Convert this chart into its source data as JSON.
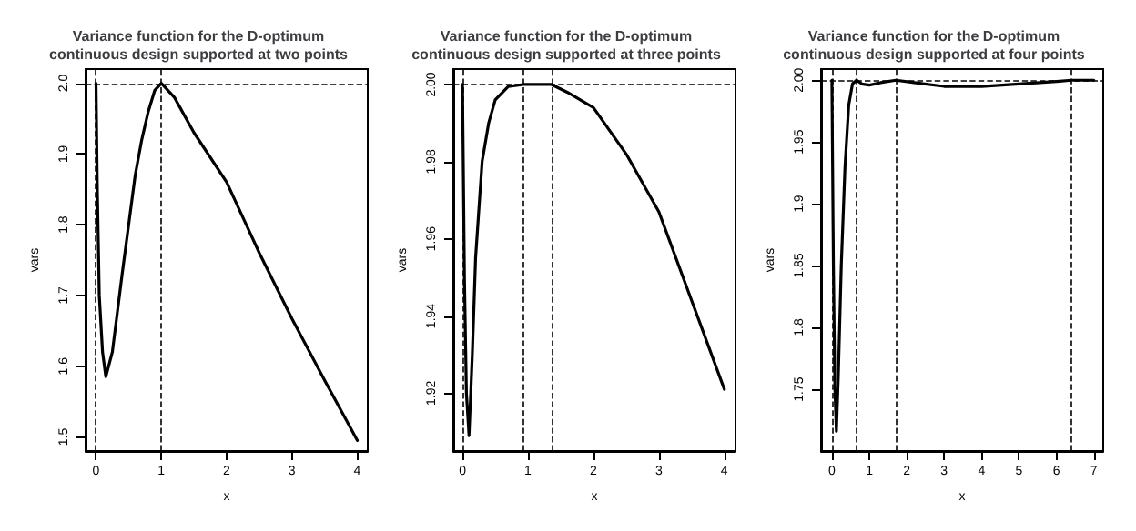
{
  "chart_data": [
    {
      "type": "line",
      "title": "Variance function for the D-optimum\ncontinuous design supported at two points",
      "xlabel": "x",
      "ylabel": "vars",
      "color": "#000000",
      "x": [
        0,
        0.02,
        0.05,
        0.1,
        0.15,
        0.25,
        0.4,
        0.5,
        0.6,
        0.7,
        0.8,
        0.9,
        1,
        1.2,
        1.5,
        2,
        2.5,
        3,
        3.5,
        4
      ],
      "values": [
        2.0,
        1.85,
        1.7,
        1.62,
        1.585,
        1.62,
        1.73,
        1.8,
        1.87,
        1.92,
        1.96,
        1.99,
        2.0,
        1.98,
        1.93,
        1.86,
        1.76,
        1.667,
        1.58,
        1.495
      ],
      "xlim": [
        -0.16,
        4.16
      ],
      "ylim": [
        1.48,
        2.02
      ],
      "xticks": [
        0,
        1,
        2,
        3,
        4
      ],
      "yticks": [
        1.5,
        1.6,
        1.7,
        1.8,
        1.9,
        {
          "value": 2,
          "label": "2.0"
        }
      ],
      "ref_lines": [
        {
          "axis": "x",
          "value": 0,
          "line_style": "dashed"
        },
        {
          "axis": "x",
          "value": 1,
          "line_style": "dashed"
        },
        {
          "axis": "y",
          "value": 2,
          "line_style": "dashed"
        }
      ],
      "grid": false,
      "marker": "none",
      "line_style": "solid"
    },
    {
      "type": "line",
      "title": "Variance function for the D-optimum\ncontinuous design supported at three points",
      "xlabel": "x",
      "ylabel": "vars",
      "color": "#000000",
      "x": [
        0,
        0.03,
        0.06,
        0.1,
        0.15,
        0.2,
        0.3,
        0.4,
        0.5,
        0.7,
        0.93,
        1.2,
        1.36,
        1.6,
        2,
        2.5,
        3,
        3.5,
        4
      ],
      "values": [
        2.0,
        1.95,
        1.92,
        1.909,
        1.93,
        1.955,
        1.98,
        1.99,
        1.996,
        1.9995,
        2.0,
        2.0,
        2.0,
        1.998,
        1.994,
        1.982,
        1.967,
        1.944,
        1.921
      ],
      "xlim": [
        -0.14,
        4.17
      ],
      "ylim": [
        1.905,
        2.004
      ],
      "xticks": [
        0,
        1,
        2,
        3,
        4
      ],
      "yticks": [
        {
          "value": 1.92,
          "label": "1.92"
        },
        {
          "value": 1.94,
          "label": "1.94"
        },
        {
          "value": 1.96,
          "label": "1.96"
        },
        {
          "value": 1.98,
          "label": "1.98"
        },
        {
          "value": 2,
          "label": "2.00"
        }
      ],
      "ref_lines": [
        {
          "axis": "x",
          "value": 0,
          "line_style": "dashed"
        },
        {
          "axis": "x",
          "value": 0.92,
          "line_style": "dashed"
        },
        {
          "axis": "x",
          "value": 1.36,
          "line_style": "dashed"
        },
        {
          "axis": "y",
          "value": 2,
          "line_style": "dashed"
        }
      ],
      "grid": false,
      "marker": "none",
      "line_style": "solid"
    },
    {
      "type": "line",
      "title": "Variance function for the D-optimum\ncontinuous design supported at four points",
      "xlabel": "x",
      "ylabel": "vars",
      "color": "#000000",
      "x": [
        0,
        0.04,
        0.08,
        0.12,
        0.17,
        0.25,
        0.35,
        0.45,
        0.55,
        0.66,
        0.8,
        1,
        1.3,
        1.71,
        2.2,
        3,
        4,
        5,
        6,
        6.41,
        7
      ],
      "values": [
        2.0,
        1.85,
        1.75,
        1.716,
        1.76,
        1.85,
        1.93,
        1.98,
        1.997,
        2.0,
        1.997,
        1.996,
        1.998,
        2.0,
        1.998,
        1.995,
        1.995,
        1.997,
        1.999,
        2.0,
        2.0
      ],
      "xlim": [
        -0.29,
        7.25
      ],
      "ylim": [
        1.7,
        2.009
      ],
      "xticks": [
        0,
        1,
        2,
        3,
        4,
        5,
        6,
        7
      ],
      "yticks": [
        1.75,
        1.8,
        1.85,
        1.9,
        1.95,
        {
          "value": 2,
          "label": "2.00"
        }
      ],
      "ref_lines": [
        {
          "axis": "x",
          "value": 0,
          "line_style": "dashed"
        },
        {
          "axis": "x",
          "value": 0.66,
          "line_style": "dashed"
        },
        {
          "axis": "x",
          "value": 1.71,
          "line_style": "dashed"
        },
        {
          "axis": "x",
          "value": 6.41,
          "line_style": "dashed"
        },
        {
          "axis": "y",
          "value": 2,
          "line_style": "dashed"
        }
      ],
      "grid": false,
      "marker": "none",
      "line_style": "solid"
    }
  ]
}
